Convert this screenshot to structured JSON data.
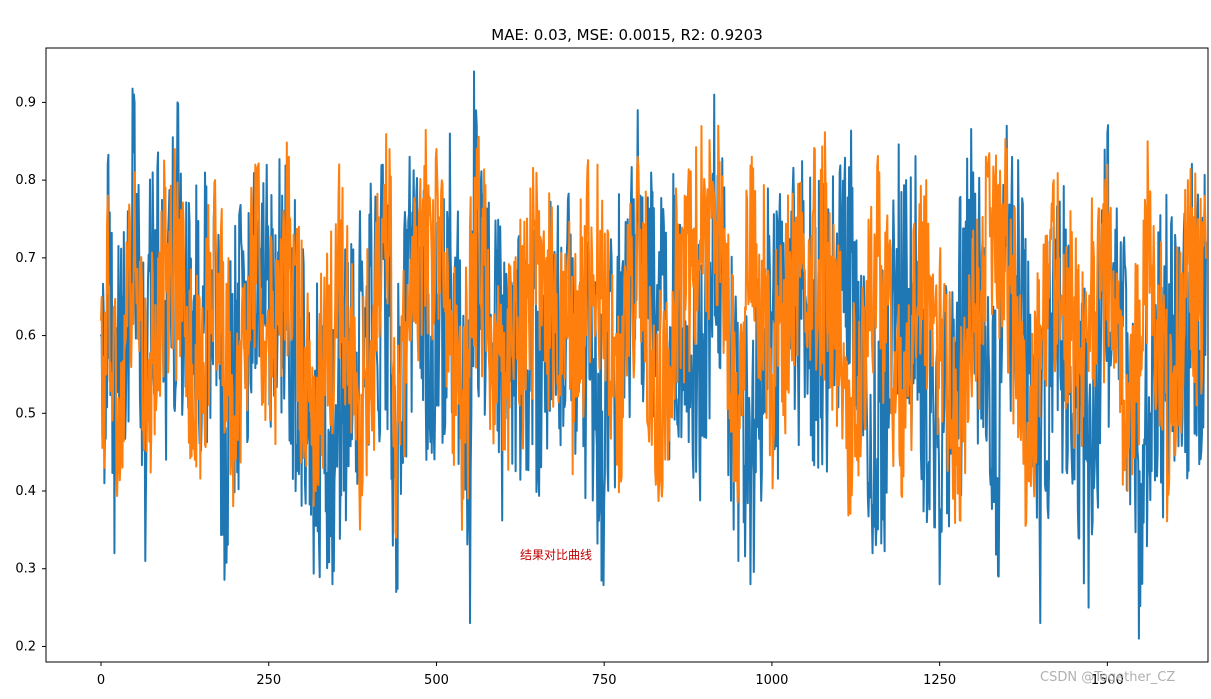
{
  "chart_data": {
    "type": "line",
    "title": "MAE: 0.03, MSE: 0.0015, R2: 0.9203",
    "xlabel": "",
    "ylabel": "",
    "xlim": [
      -82,
      1650
    ],
    "ylim": [
      0.18,
      0.97
    ],
    "x_ticks": [
      0,
      250,
      500,
      750,
      1000,
      1250,
      1500
    ],
    "y_ticks": [
      0.2,
      0.3,
      0.4,
      0.5,
      0.6,
      0.7,
      0.8,
      0.9
    ],
    "x_tick_labels": [
      "0",
      "250",
      "500",
      "750",
      "1000",
      "1250",
      "1500"
    ],
    "y_tick_labels": [
      "0.2",
      "0.3",
      "0.4",
      "0.5",
      "0.6",
      "0.7",
      "0.8",
      "0.9"
    ],
    "grid": false,
    "series_count_estimate": 1650,
    "series": [
      {
        "color": "#1f77b4",
        "description": "dense noisy line, estimated from the plotted envelope",
        "points": [
          [
            0,
            0.6
          ],
          [
            5,
            0.41
          ],
          [
            10,
            0.82
          ],
          [
            20,
            0.32
          ],
          [
            40,
            0.76
          ],
          [
            50,
            0.9
          ],
          [
            66,
            0.31
          ],
          [
            77,
            0.81
          ],
          [
            100,
            0.73
          ],
          [
            114,
            0.9
          ],
          [
            137,
            0.55
          ],
          [
            170,
            0.77
          ],
          [
            185,
            0.34
          ],
          [
            210,
            0.71
          ],
          [
            240,
            0.77
          ],
          [
            270,
            0.78
          ],
          [
            325,
            0.33
          ],
          [
            345,
            0.28
          ],
          [
            420,
            0.82
          ],
          [
            440,
            0.27
          ],
          [
            460,
            0.83
          ],
          [
            500,
            0.51
          ],
          [
            520,
            0.86
          ],
          [
            550,
            0.23
          ],
          [
            556,
            0.94
          ],
          [
            600,
            0.49
          ],
          [
            654,
            0.56
          ],
          [
            700,
            0.73
          ],
          [
            748,
            0.33
          ],
          [
            800,
            0.89
          ],
          [
            850,
            0.61
          ],
          [
            900,
            0.57
          ],
          [
            914,
            0.91
          ],
          [
            950,
            0.31
          ],
          [
            968,
            0.28
          ],
          [
            1000,
            0.63
          ],
          [
            1030,
            0.73
          ],
          [
            1080,
            0.71
          ],
          [
            1120,
            0.79
          ],
          [
            1150,
            0.32
          ],
          [
            1200,
            0.8
          ],
          [
            1250,
            0.28
          ],
          [
            1300,
            0.81
          ],
          [
            1338,
            0.29
          ],
          [
            1350,
            0.87
          ],
          [
            1400,
            0.23
          ],
          [
            1428,
            0.75
          ],
          [
            1472,
            0.25
          ],
          [
            1500,
            0.86
          ],
          [
            1547,
            0.21
          ],
          [
            1570,
            0.54
          ],
          [
            1647,
            0.72
          ]
        ]
      },
      {
        "color": "#ff7f0e",
        "description": "dense predicted curve, estimated from the plotted envelope",
        "points": [
          [
            0,
            0.62
          ],
          [
            5,
            0.43
          ],
          [
            10,
            0.78
          ],
          [
            25,
            0.43
          ],
          [
            50,
            0.81
          ],
          [
            70,
            0.49
          ],
          [
            90,
            0.76
          ],
          [
            110,
            0.84
          ],
          [
            140,
            0.44
          ],
          [
            170,
            0.8
          ],
          [
            200,
            0.44
          ],
          [
            230,
            0.82
          ],
          [
            250,
            0.58
          ],
          [
            280,
            0.83
          ],
          [
            305,
            0.47
          ],
          [
            320,
            0.4
          ],
          [
            360,
            0.79
          ],
          [
            385,
            0.41
          ],
          [
            430,
            0.84
          ],
          [
            440,
            0.34
          ],
          [
            470,
            0.74
          ],
          [
            500,
            0.84
          ],
          [
            540,
            0.39
          ],
          [
            560,
            0.84
          ],
          [
            600,
            0.5
          ],
          [
            650,
            0.77
          ],
          [
            700,
            0.57
          ],
          [
            740,
            0.82
          ],
          [
            770,
            0.48
          ],
          [
            800,
            0.83
          ],
          [
            830,
            0.42
          ],
          [
            870,
            0.78
          ],
          [
            920,
            0.87
          ],
          [
            950,
            0.41
          ],
          [
            970,
            0.83
          ],
          [
            1000,
            0.55
          ],
          [
            1040,
            0.73
          ],
          [
            1080,
            0.79
          ],
          [
            1120,
            0.44
          ],
          [
            1160,
            0.81
          ],
          [
            1190,
            0.45
          ],
          [
            1230,
            0.8
          ],
          [
            1270,
            0.39
          ],
          [
            1320,
            0.81
          ],
          [
            1350,
            0.84
          ],
          [
            1380,
            0.42
          ],
          [
            1420,
            0.8
          ],
          [
            1460,
            0.55
          ],
          [
            1500,
            0.82
          ],
          [
            1530,
            0.4
          ],
          [
            1560,
            0.85
          ],
          [
            1590,
            0.42
          ],
          [
            1620,
            0.8
          ],
          [
            1647,
            0.7
          ]
        ]
      }
    ],
    "annotation_text": "结果对比曲线",
    "watermark_text": "CSDN @Together_CZ"
  },
  "colors": {
    "blue": "#1f77b4",
    "orange": "#ff7f0e",
    "annotation": "#c00000",
    "watermark": "#b0b0b0"
  }
}
